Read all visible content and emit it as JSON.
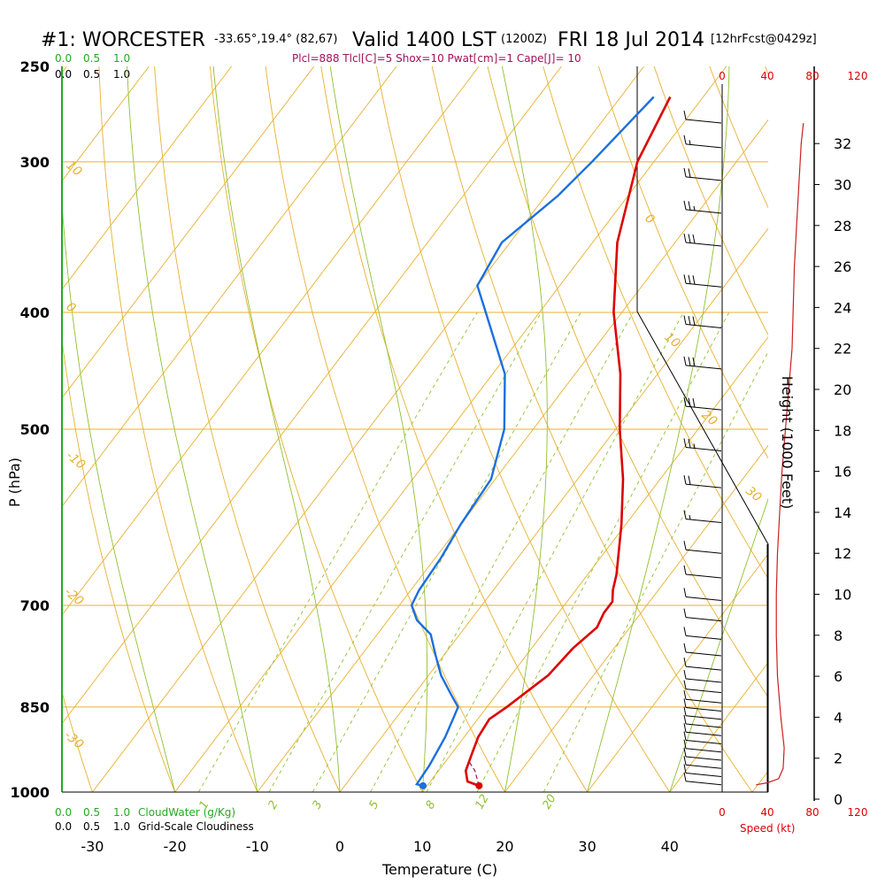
{
  "header": {
    "station": "#1: WORCESTER",
    "coords": "-33.65°,19.4° (82,67)",
    "valid": "Valid 1400 LST",
    "valid_utc": "(1200Z)",
    "date": "FRI 18 Jul 2014",
    "forecast": "[12hrFcst@0429z]"
  },
  "params_line": "Plcl=888 Tlcl[C]=5 Shox=10 Pwat[cm]=1 Cape[J]= 10",
  "cloud_scales": {
    "top_green": [
      "0.0",
      "0.5",
      "1.0"
    ],
    "top_black": [
      "0.0",
      "0.5",
      "1.0"
    ],
    "bottom_green": [
      "0.0",
      "0.5",
      "1.0"
    ],
    "bottom_green_label": "CloudWater (g/Kg)",
    "bottom_black": [
      "0.0",
      "0.5",
      "1.0"
    ],
    "bottom_black_label": "Grid-Scale Cloudiness"
  },
  "speed_axis": {
    "ticks": [
      "0",
      "40",
      "80",
      "120"
    ],
    "label": "Speed (kt)"
  },
  "height_axis": {
    "label": "Height (1000 Feet)",
    "ticks": [
      "0",
      "2",
      "4",
      "6",
      "8",
      "10",
      "12",
      "14",
      "16",
      "18",
      "20",
      "22",
      "24",
      "26",
      "28",
      "30",
      "32"
    ]
  },
  "colors": {
    "isotherm": "#e8b030",
    "dry_adiabat": "#e8b030",
    "moist_adiabat": "#90c030",
    "mixing_ratio": "#90c030",
    "temperature": "#dd0000",
    "dewpoint": "#1a6fe0",
    "speed": "#cc2020",
    "cloud": "#22aa22"
  },
  "chart_data": {
    "type": "line",
    "xlabel": "Temperature (C)",
    "ylabel": "P (hPa)",
    "x_ticks": [
      -30,
      -20,
      -10,
      0,
      10,
      20,
      30,
      40
    ],
    "p_ticks": [
      250,
      300,
      400,
      500,
      700,
      850,
      1000
    ],
    "xlim": [
      -35,
      36
    ],
    "plim": [
      1000,
      250
    ],
    "skew": "skew-T log-p",
    "isotherm_labels": [
      "10",
      "0",
      "-10",
      "-20",
      "-30",
      "0",
      "10",
      "20",
      "30"
    ],
    "mixing_ratio_labels": [
      "1",
      "2",
      "3",
      "5",
      "8",
      "12",
      "20"
    ],
    "temperature": {
      "p": [
        988,
        980,
        960,
        930,
        900,
        870,
        850,
        800,
        760,
        730,
        710,
        695,
        680,
        660,
        600,
        550,
        500,
        450,
        400,
        350,
        300,
        265
      ],
      "t": [
        16.3,
        14.5,
        13.3,
        12.5,
        11.7,
        11.4,
        12.4,
        14.5,
        15.0,
        16.0,
        15.5,
        15.5,
        14.5,
        13.5,
        9.5,
        5.5,
        0.5,
        -4.5,
        -11.0,
        -17.0,
        -22.0,
        -24.0
      ]
    },
    "dewpoint": {
      "p": [
        988,
        985,
        950,
        900,
        870,
        850,
        830,
        800,
        770,
        740,
        720,
        700,
        680,
        640,
        600,
        550,
        500,
        450,
        400,
        380,
        350,
        320,
        300,
        265
      ],
      "t": [
        9.5,
        8.6,
        8.4,
        7.7,
        7.0,
        6.5,
        4.5,
        1.5,
        -1.0,
        -3.5,
        -6.5,
        -8.5,
        -9.0,
        -9.3,
        -10.0,
        -10.5,
        -13.5,
        -18.5,
        -26.5,
        -30.0,
        -31.0,
        -28.5,
        -27.5,
        -26.0
      ]
    },
    "parcel": {
      "p": [
        988,
        960,
        945
      ],
      "t": [
        16.3,
        14.4,
        13.0
      ]
    },
    "wind_speed": {
      "h_kft": [
        0.7,
        0.8,
        1.0,
        1.5,
        2.5,
        4,
        6,
        8,
        10,
        12,
        14,
        16,
        18,
        20,
        22,
        24,
        26,
        28,
        30,
        32,
        33
      ],
      "kt": [
        30,
        40,
        50,
        54,
        55,
        52,
        49,
        48,
        48,
        49,
        51,
        53,
        56,
        59,
        62,
        63,
        64,
        66,
        68,
        70,
        72
      ]
    },
    "wind_barbs": {
      "h_kft": [
        0.7,
        1.1,
        1.5,
        1.9,
        2.3,
        2.7,
        3.1,
        3.5,
        3.9,
        4.3,
        4.7,
        5.2,
        5.7,
        6.3,
        7.0,
        7.8,
        8.7,
        9.7,
        10.8,
        12.0,
        13.5,
        15.2,
        17.0,
        19.0,
        21.0,
        23.0,
        25.0,
        27.0,
        28.6,
        30.2,
        31.8,
        33.0
      ],
      "speed": [
        10,
        10,
        10,
        10,
        10,
        10,
        10,
        10,
        10,
        10,
        10,
        10,
        10,
        10,
        10,
        10,
        10,
        10,
        10,
        10,
        15,
        20,
        25,
        30,
        30,
        30,
        30,
        30,
        25,
        20,
        15,
        10
      ]
    }
  }
}
